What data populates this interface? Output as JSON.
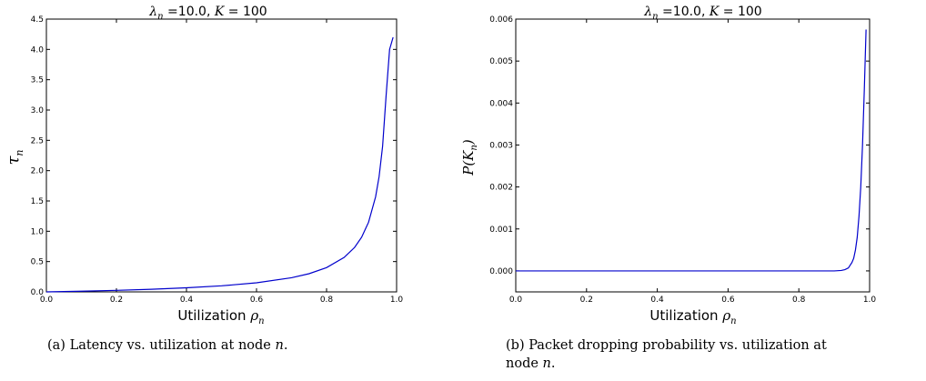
{
  "chart_data": [
    {
      "type": "line",
      "title": {
        "prefix": "λ",
        "sub": "n",
        "eq": " =10.0, ",
        "k": "K",
        "suffix": " = 100"
      },
      "xlabel": {
        "text": "Utilization ",
        "sym": "ρ",
        "sub": "n"
      },
      "ylabel": {
        "sym": "τ",
        "sub": "n"
      },
      "xlim": [
        0,
        1.0
      ],
      "ylim": [
        0,
        4.5
      ],
      "x_ticks": [
        0.0,
        0.2,
        0.4,
        0.6,
        0.8,
        1.0
      ],
      "x_tick_labels": [
        "0.0",
        "0.2",
        "0.4",
        "0.6",
        "0.8",
        "1.0"
      ],
      "y_ticks": [
        0,
        0.5,
        1.0,
        1.5,
        2.0,
        2.5,
        3.0,
        3.5,
        4.0,
        4.5
      ],
      "y_tick_labels": [
        "0.0",
        "0.5",
        "1.0",
        "1.5",
        "2.0",
        "2.5",
        "3.0",
        "3.5",
        "4.0",
        "4.5"
      ],
      "grid": false,
      "series": [
        {
          "color": "#0000cc",
          "x": [
            0.0,
            0.1,
            0.2,
            0.3,
            0.4,
            0.5,
            0.6,
            0.7,
            0.75,
            0.8,
            0.85,
            0.88,
            0.9,
            0.92,
            0.94,
            0.95,
            0.96,
            0.97,
            0.98,
            0.99
          ],
          "y": [
            0.0,
            0.011,
            0.025,
            0.043,
            0.067,
            0.1,
            0.15,
            0.233,
            0.3,
            0.4,
            0.567,
            0.733,
            0.9,
            1.15,
            1.567,
            1.9,
            2.4,
            3.233,
            4.0,
            4.2
          ]
        }
      ],
      "caption": {
        "text": "(a) Latency vs. utilization at node ",
        "ital": "n",
        "end": "."
      }
    },
    {
      "type": "line",
      "title": {
        "prefix": "λ",
        "sub": "n",
        "eq": " =10.0, ",
        "k": "K",
        "suffix": " = 100"
      },
      "xlabel": {
        "text": "Utilization ",
        "sym": "ρ",
        "sub": "n"
      },
      "ylabel": {
        "open": "P(K",
        "sub": "n",
        "close": ")"
      },
      "xlim": [
        0,
        1.0
      ],
      "ylim": [
        -0.0005,
        0.006
      ],
      "x_ticks": [
        0.0,
        0.2,
        0.4,
        0.6,
        0.8,
        1.0
      ],
      "x_tick_labels": [
        "0.0",
        "0.2",
        "0.4",
        "0.6",
        "0.8",
        "1.0"
      ],
      "y_ticks": [
        0.0,
        0.001,
        0.002,
        0.003,
        0.004,
        0.005,
        0.006
      ],
      "y_tick_labels": [
        "0.000",
        "0.001",
        "0.002",
        "0.003",
        "0.004",
        "0.005",
        "0.006"
      ],
      "grid": false,
      "series": [
        {
          "color": "#0000cc",
          "x": [
            0.0,
            0.5,
            0.8,
            0.9,
            0.92,
            0.93,
            0.94,
            0.95,
            0.955,
            0.96,
            0.965,
            0.97,
            0.975,
            0.98,
            0.985,
            0.99
          ],
          "y": [
            0.0,
            0.0,
            0.0,
            0.0,
            1e-05,
            3e-05,
            7e-05,
            0.0002,
            0.0003,
            0.0005,
            0.0008,
            0.0013,
            0.002,
            0.003,
            0.0043,
            0.00575
          ]
        }
      ],
      "caption": {
        "line1": "(b) Packet dropping probability vs.  utilization at",
        "line2a": "node ",
        "ital": "n",
        "end": "."
      }
    }
  ]
}
